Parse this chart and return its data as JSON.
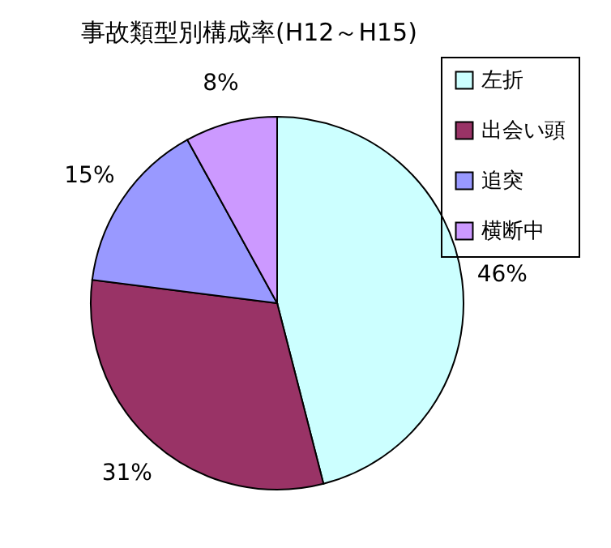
{
  "chart_data": {
    "type": "pie",
    "title": "事故類型別構成率(H12～H15)",
    "categories": [
      "左折",
      "出会い頭",
      "追突",
      "横断中"
    ],
    "values": [
      46,
      31,
      15,
      8
    ],
    "value_labels": [
      "46%",
      "31%",
      "15%",
      "8%"
    ],
    "colors": [
      "#ccffff",
      "#993366",
      "#9999ff",
      "#cc99ff"
    ],
    "legend": "top right"
  }
}
